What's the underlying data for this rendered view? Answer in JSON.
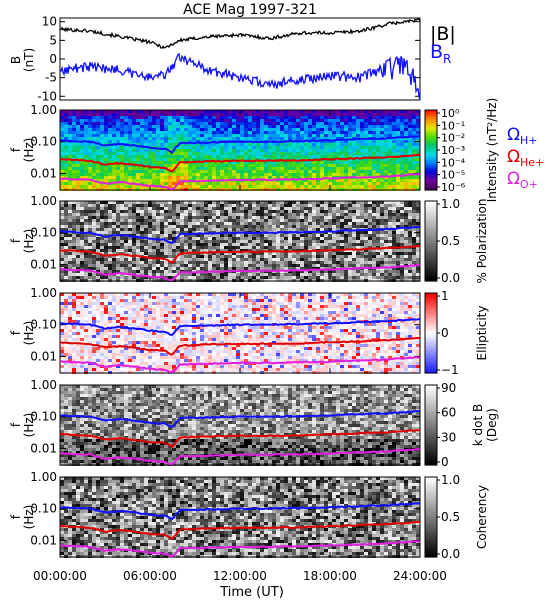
{
  "title": "ACE Mag 1997-321",
  "x_axis": {
    "label": "Time (UT)",
    "ticks": [
      "00:00:00",
      "06:00:00",
      "12:00:00",
      "18:00:00",
      "24:00:00"
    ],
    "range_hours": [
      0,
      24
    ]
  },
  "freq_axis": {
    "label_line1": "f",
    "label_line2": "(Hz)",
    "ticks": [
      "1.00",
      "0.10",
      "0.01"
    ],
    "log_scale": true,
    "range_hz": [
      0.003,
      1.0
    ]
  },
  "field_panel": {
    "ylabel_line1": "B",
    "ylabel_line2": "(nT)",
    "yticks": [
      "10",
      "5",
      "0",
      "-5",
      "-10"
    ],
    "ylim": [
      -11,
      11
    ],
    "legend_B_main": "|B|",
    "legend_BR_main": "B",
    "legend_BR_sub": "R"
  },
  "cyclotron_legend": [
    {
      "symbol": "Ω",
      "sub": "H+",
      "color": "#1010ff"
    },
    {
      "symbol": "Ω",
      "sub": "He+",
      "color": "#e00000"
    },
    {
      "symbol": "Ω",
      "sub": "O+",
      "color": "#e020e0"
    }
  ],
  "colorbars": [
    {
      "label": "Intensity (nT²/Hz)",
      "tick_labels": [
        "10⁰",
        "10⁻¹",
        "10⁻²",
        "10⁻³",
        "10⁻⁴",
        "10⁻⁵",
        "10⁻⁶"
      ],
      "scheme": "rainbow"
    },
    {
      "label": "% Polarization",
      "tick_labels": [
        "1.0",
        "0.5",
        "0.0"
      ],
      "scheme": "gray"
    },
    {
      "label": "Ellipticity",
      "tick_labels": [
        "1",
        "0",
        "−1"
      ],
      "scheme": "redblue"
    },
    {
      "label": "k dot B (Deg)",
      "label_line1": "k dot B",
      "label_line2": "(Deg)",
      "tick_labels": [
        "90",
        "60",
        "30",
        "0"
      ],
      "scheme": "gray"
    },
    {
      "label": "Coherency",
      "tick_labels": [
        "1.0",
        "0.5",
        "0.0"
      ],
      "scheme": "gray"
    }
  ],
  "colors": {
    "B_total": "#000000",
    "B_R": "#1010ff",
    "H_plus": "#1010ff",
    "He_plus": "#e00000",
    "O_plus": "#e020e0"
  },
  "chart_data": [
    {
      "type": "line",
      "title": "ACE Mag 1997-321",
      "xlabel": "Time (UT)",
      "ylabel": "B (nT)",
      "ylim": [
        -11,
        11
      ],
      "x_hours": [
        0,
        2,
        4,
        6,
        7,
        8,
        10,
        12,
        14,
        16,
        18,
        20,
        22,
        23,
        24
      ],
      "series": [
        {
          "name": "|B|",
          "values": [
            8.0,
            7.5,
            6.0,
            4.5,
            3.0,
            5.0,
            6.0,
            6.5,
            5.5,
            7.0,
            7.0,
            7.5,
            9.5,
            10.0,
            10.5
          ]
        },
        {
          "name": "B_R",
          "values": [
            -3.0,
            -2.0,
            -3.0,
            -5.0,
            -4.0,
            0.5,
            -3.0,
            -5.0,
            -7.0,
            -5.5,
            -4.5,
            -5.0,
            -2.0,
            -1.0,
            -10.0
          ]
        }
      ]
    },
    {
      "type": "heatmap",
      "name": "Intensity spectrogram",
      "ylabel": "f (Hz)",
      "colorbar": "Intensity (nT²/Hz)",
      "overlay_lines": {
        "x_hours": [
          0,
          2,
          3,
          4,
          6,
          7,
          7.5,
          8,
          10,
          12,
          14,
          16,
          18,
          20,
          22,
          24
        ],
        "H_plus_hz": [
          0.11,
          0.1,
          0.075,
          0.085,
          0.065,
          0.06,
          0.045,
          0.09,
          0.095,
          0.1,
          0.1,
          0.105,
          0.11,
          0.12,
          0.13,
          0.15
        ],
        "He_plus_hz": [
          0.028,
          0.025,
          0.019,
          0.021,
          0.016,
          0.015,
          0.011,
          0.022,
          0.024,
          0.025,
          0.025,
          0.026,
          0.028,
          0.03,
          0.033,
          0.038
        ],
        "O_plus_hz": [
          0.0069,
          0.0063,
          0.0047,
          0.0053,
          0.0041,
          0.0038,
          0.0028,
          0.0056,
          0.0059,
          0.0063,
          0.0063,
          0.0066,
          0.0069,
          0.0075,
          0.0081,
          0.0094
        ]
      }
    },
    {
      "type": "heatmap",
      "name": "Polarization spectrogram",
      "ylabel": "f (Hz)",
      "colorbar": "% Polarization"
    },
    {
      "type": "heatmap",
      "name": "Ellipticity spectrogram",
      "ylabel": "f (Hz)",
      "colorbar": "Ellipticity"
    },
    {
      "type": "heatmap",
      "name": "k dot B spectrogram",
      "ylabel": "f (Hz)",
      "colorbar": "k dot B (Deg)"
    },
    {
      "type": "heatmap",
      "name": "Coherency spectrogram",
      "ylabel": "f (Hz)",
      "colorbar": "Coherency"
    }
  ]
}
